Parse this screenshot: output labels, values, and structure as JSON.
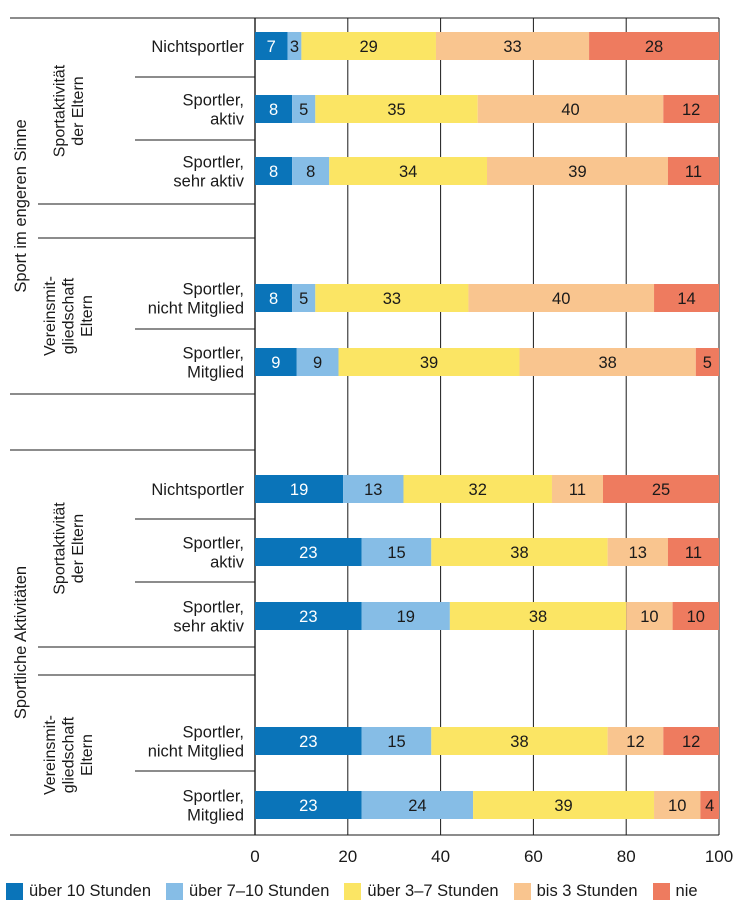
{
  "chart_data": {
    "type": "bar",
    "stacked": true,
    "orientation": "horizontal",
    "xlim": [
      0,
      100
    ],
    "x_ticks": [
      "0",
      "20",
      "40",
      "60",
      "80",
      "100"
    ],
    "series": [
      {
        "name": "über 10 Stunden",
        "color": "#0a74b9"
      },
      {
        "name": "über 7–10 Stunden",
        "color": "#86bde6"
      },
      {
        "name": "über 3–7 Stunden",
        "color": "#fbe564"
      },
      {
        "name": "bis 3 Stunden",
        "color": "#f9c58f"
      },
      {
        "name": "nie",
        "color": "#ee7b5f"
      }
    ],
    "label_colors": [
      "#ffffff",
      "#1a1a1a",
      "#1a1a1a",
      "#1a1a1a",
      "#1a1a1a"
    ],
    "sections": [
      {
        "label": "Sport im engeren Sinne",
        "groups": [
          {
            "label": [
              "Sportaktivität",
              "der Eltern"
            ],
            "rows": [
              {
                "label": [
                  "Nichtsportler"
                ],
                "values": [
                  7,
                  3,
                  29,
                  33,
                  28
                ]
              },
              {
                "label": [
                  "Sportler,",
                  "aktiv"
                ],
                "values": [
                  8,
                  5,
                  35,
                  40,
                  12
                ]
              },
              {
                "label": [
                  "Sportler,",
                  "sehr aktiv"
                ],
                "values": [
                  8,
                  8,
                  34,
                  39,
                  11
                ]
              }
            ]
          },
          {
            "label": [
              "Vereinsmit-",
              "gliedschaft",
              "Eltern"
            ],
            "rows": [
              {
                "label": [
                  "Sportler,",
                  "nicht Mitglied"
                ],
                "values": [
                  8,
                  5,
                  33,
                  40,
                  14
                ]
              },
              {
                "label": [
                  "Sportler,",
                  "Mitglied"
                ],
                "values": [
                  9,
                  9,
                  39,
                  38,
                  5
                ]
              }
            ]
          }
        ]
      },
      {
        "label": "Sportliche Aktivitäten",
        "groups": [
          {
            "label": [
              "Sportaktivität",
              "der Eltern"
            ],
            "rows": [
              {
                "label": [
                  "Nichtsportler"
                ],
                "values": [
                  19,
                  13,
                  32,
                  11,
                  25
                ]
              },
              {
                "label": [
                  "Sportler,",
                  "aktiv"
                ],
                "values": [
                  23,
                  15,
                  38,
                  13,
                  11
                ]
              },
              {
                "label": [
                  "Sportler,",
                  "sehr aktiv"
                ],
                "values": [
                  23,
                  19,
                  38,
                  10,
                  10
                ]
              }
            ]
          },
          {
            "label": [
              "Vereinsmit-",
              "gliedschaft",
              "Eltern"
            ],
            "rows": [
              {
                "label": [
                  "Sportler,",
                  "nicht Mitglied"
                ],
                "values": [
                  23,
                  15,
                  38,
                  12,
                  12
                ]
              },
              {
                "label": [
                  "Sportler,",
                  "Mitglied"
                ],
                "values": [
                  23,
                  24,
                  39,
                  10,
                  4
                ]
              }
            ]
          }
        ]
      }
    ]
  }
}
